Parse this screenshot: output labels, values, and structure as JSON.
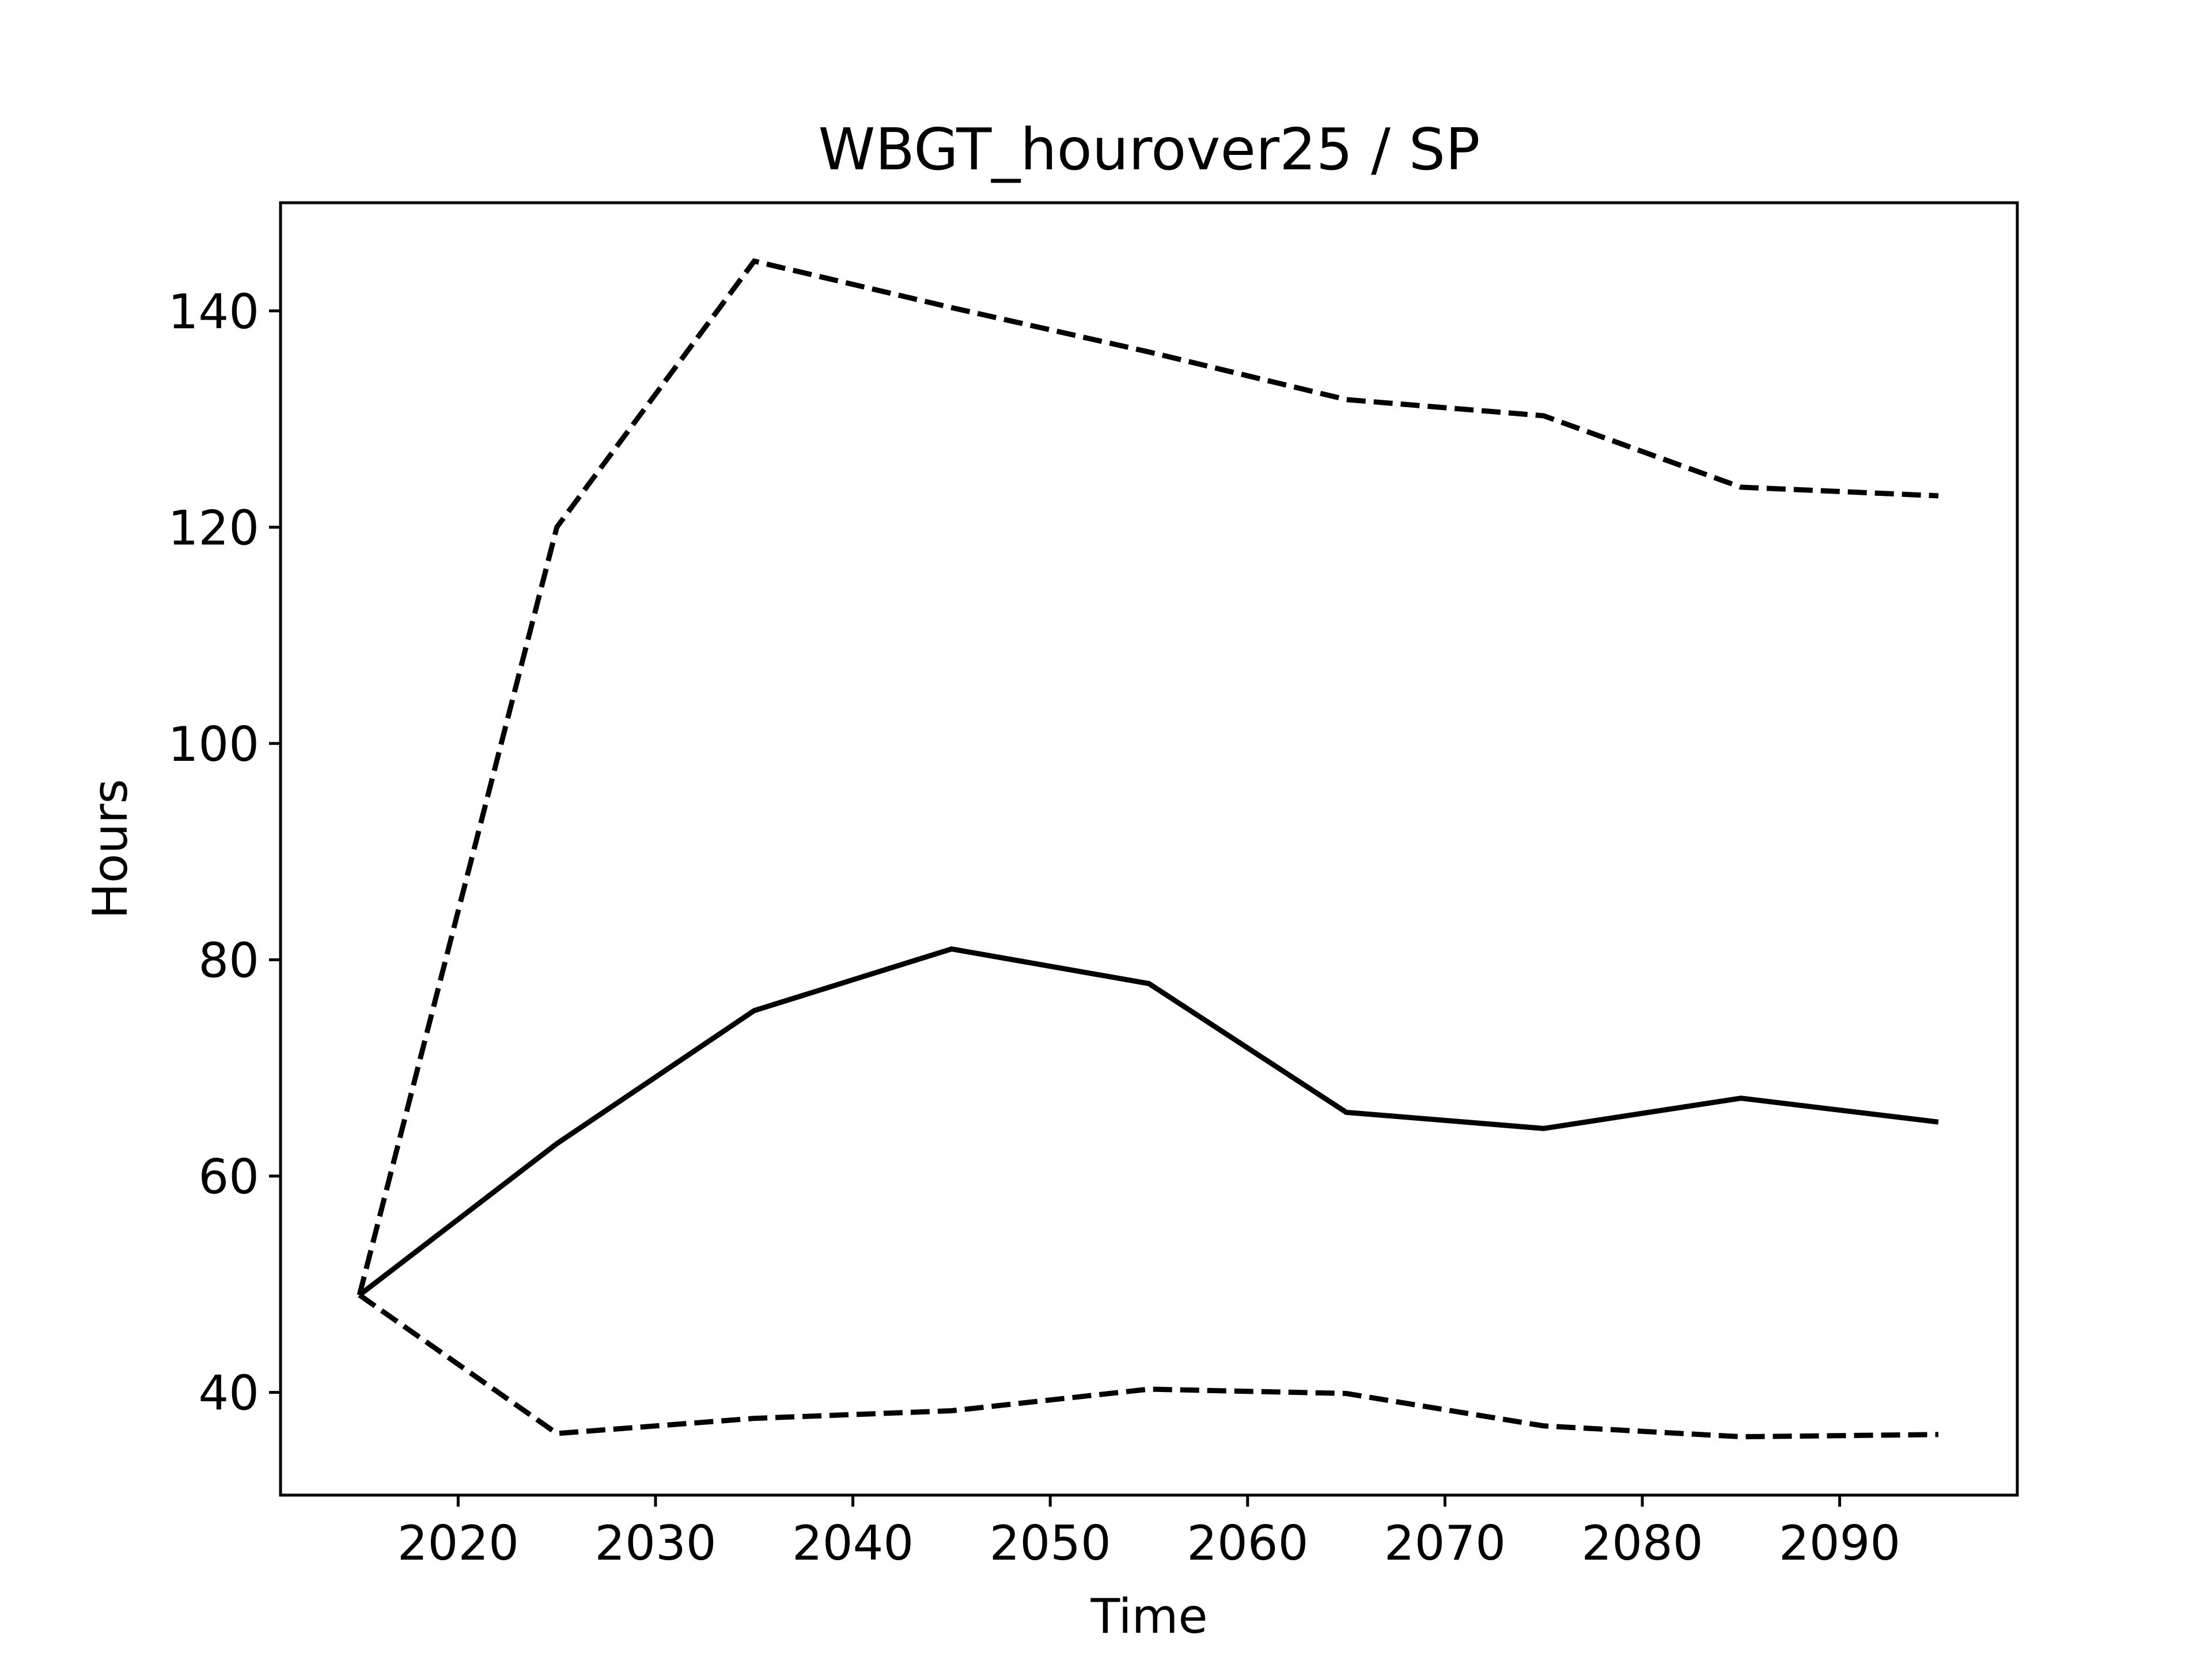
{
  "chart_data": {
    "type": "line",
    "title": "WBGT_hourover25 / SP",
    "xlabel": "Time",
    "ylabel": "Hours",
    "xlim": [
      2011,
      2099
    ],
    "ylim": [
      30.5,
      150
    ],
    "x_ticks": [
      2020,
      2030,
      2040,
      2050,
      2060,
      2070,
      2080,
      2090
    ],
    "y_ticks": [
      40,
      60,
      80,
      100,
      120,
      140
    ],
    "grid": false,
    "x": [
      2015,
      2025,
      2035,
      2045,
      2055,
      2065,
      2075,
      2085,
      2095
    ],
    "series": [
      {
        "style": "solid",
        "color": "#000000",
        "values": [
          49.0,
          63.0,
          75.3,
          81.0,
          77.8,
          65.9,
          64.4,
          67.2,
          65.0
        ]
      },
      {
        "style": "dashed",
        "color": "#000000",
        "values": [
          49.0,
          120.0,
          144.6,
          140.3,
          136.2,
          131.8,
          130.3,
          123.7,
          122.9
        ]
      },
      {
        "style": "dashed",
        "color": "#000000",
        "values": [
          49.0,
          36.2,
          37.6,
          38.3,
          40.3,
          39.9,
          36.9,
          35.9,
          36.1
        ]
      }
    ]
  }
}
